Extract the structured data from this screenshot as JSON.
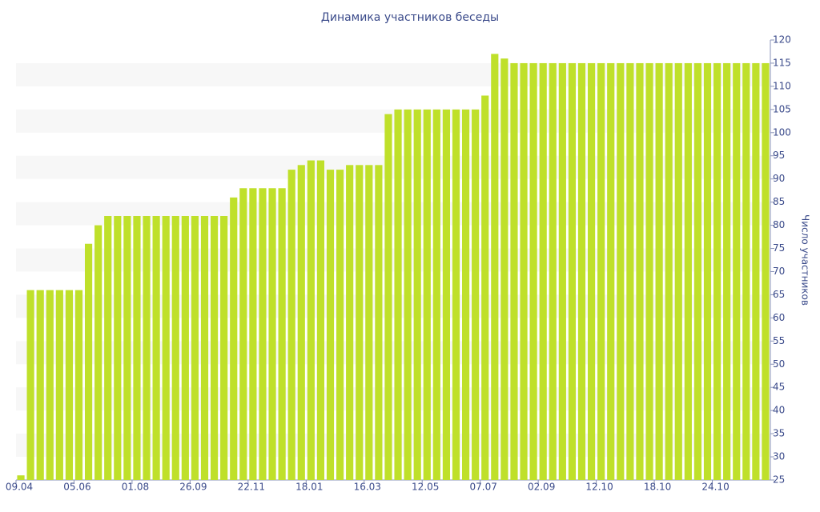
{
  "chart_data": {
    "type": "bar",
    "title": "Динамика участников беседы",
    "y_label": "Число участников",
    "categories": [
      "09.04",
      null,
      null,
      null,
      null,
      null,
      "05.06",
      null,
      null,
      null,
      null,
      null,
      "01.08",
      null,
      null,
      null,
      null,
      null,
      "26.09",
      null,
      null,
      null,
      null,
      null,
      "22.11",
      null,
      null,
      null,
      null,
      null,
      "18.01",
      null,
      null,
      null,
      null,
      null,
      "16.03",
      null,
      null,
      null,
      null,
      null,
      "12.05",
      null,
      null,
      null,
      null,
      null,
      "07.07",
      null,
      null,
      null,
      null,
      null,
      "02.09",
      null,
      null,
      null,
      null,
      null,
      "12.10",
      null,
      null,
      null,
      null,
      null,
      "18.10",
      null,
      null,
      null,
      null,
      null,
      "24.10",
      null,
      null,
      null,
      null,
      null
    ],
    "values": [
      26,
      66,
      66,
      66,
      66,
      66,
      66,
      76,
      80,
      82,
      82,
      82,
      82,
      82,
      82,
      82,
      82,
      82,
      82,
      82,
      82,
      82,
      86,
      88,
      88,
      88,
      88,
      88,
      92,
      93,
      94,
      94,
      92,
      92,
      93,
      93,
      93,
      93,
      104,
      105,
      105,
      105,
      105,
      105,
      105,
      105,
      105,
      105,
      108,
      117,
      116,
      115,
      115,
      115,
      115,
      115,
      115,
      115,
      115,
      115,
      115,
      115,
      115,
      115,
      115,
      115,
      115,
      115,
      115,
      115,
      115,
      115,
      115,
      115,
      115,
      115,
      115,
      115
    ],
    "color": "#bfe02a",
    "ylim": [
      25,
      120
    ],
    "yticks": [
      25,
      30,
      35,
      40,
      45,
      50,
      55,
      60,
      65,
      70,
      75,
      80,
      85,
      90,
      95,
      100,
      105,
      110,
      115,
      120
    ],
    "grid": true
  }
}
